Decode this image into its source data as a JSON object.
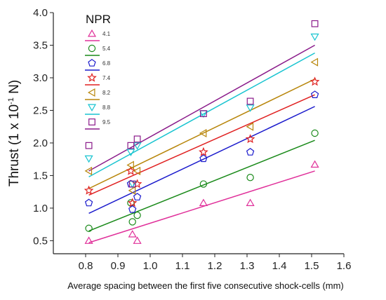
{
  "chart_data": {
    "type": "scatter",
    "title": "",
    "xlabel": "Average spacing between the first five consecutive shock-cells (mm)",
    "ylabel_parts": [
      "Thrust (1 x 10",
      "-1",
      " N)"
    ],
    "xlim": [
      0.7,
      1.6
    ],
    "ylim": [
      0.3,
      4.0
    ],
    "x_ticks": [
      "0.8",
      "0.9",
      "1.0",
      "1.1",
      "1.2",
      "1.3",
      "1.4",
      "1.5",
      "1.6"
    ],
    "y_ticks": [
      "0.5",
      "1.0",
      "1.5",
      "2.0",
      "2.5",
      "3.0",
      "3.5",
      "4.0"
    ],
    "grid": false,
    "legend_title": "NPR",
    "legend_position": "top-left",
    "series": [
      {
        "name": "4.1",
        "marker": "triangle-up",
        "color": "#e0309a",
        "points": [
          [
            0.81,
            0.5
          ],
          [
            0.945,
            0.6
          ],
          [
            0.96,
            0.5
          ],
          [
            1.165,
            1.08
          ],
          [
            1.31,
            1.08
          ],
          [
            1.51,
            1.67
          ]
        ],
        "fit": [
          [
            0.81,
            0.47
          ],
          [
            1.51,
            1.57
          ]
        ]
      },
      {
        "name": "5.4",
        "marker": "circle",
        "color": "#1a8a1a",
        "points": [
          [
            0.81,
            0.69
          ],
          [
            0.94,
            1.08
          ],
          [
            0.945,
            0.79
          ],
          [
            0.96,
            0.89
          ],
          [
            1.165,
            1.37
          ],
          [
            1.31,
            1.47
          ],
          [
            1.51,
            2.15
          ]
        ],
        "fit": [
          [
            0.81,
            0.65
          ],
          [
            1.51,
            2.04
          ]
        ]
      },
      {
        "name": "6.8",
        "marker": "pentagon",
        "color": "#1a1acc",
        "points": [
          [
            0.81,
            1.08
          ],
          [
            0.94,
            1.37
          ],
          [
            0.945,
            0.98
          ],
          [
            0.96,
            1.17
          ],
          [
            1.165,
            1.76
          ],
          [
            1.31,
            1.86
          ],
          [
            1.51,
            2.74
          ]
        ],
        "fit": [
          [
            0.81,
            0.92
          ],
          [
            1.51,
            2.56
          ]
        ]
      },
      {
        "name": "7.4",
        "marker": "star",
        "color": "#e02020",
        "points": [
          [
            0.81,
            1.27
          ],
          [
            0.94,
            1.57
          ],
          [
            0.945,
            1.08
          ],
          [
            0.96,
            1.37
          ],
          [
            1.165,
            1.86
          ],
          [
            1.31,
            2.06
          ],
          [
            1.51,
            2.94
          ]
        ],
        "fit": [
          [
            0.81,
            1.2
          ],
          [
            1.51,
            2.74
          ]
        ]
      },
      {
        "name": "8.2",
        "marker": "triangle-left",
        "color": "#b8860b",
        "points": [
          [
            0.81,
            1.57
          ],
          [
            0.94,
            1.66
          ],
          [
            0.945,
            1.27
          ],
          [
            0.96,
            1.57
          ],
          [
            1.165,
            2.15
          ],
          [
            1.31,
            2.25
          ],
          [
            1.51,
            3.24
          ]
        ],
        "fit": [
          [
            0.81,
            1.3
          ],
          [
            1.51,
            2.98
          ]
        ]
      },
      {
        "name": "8.8",
        "marker": "triangle-down",
        "color": "#18c4d0",
        "points": [
          [
            0.81,
            1.76
          ],
          [
            0.94,
            1.86
          ],
          [
            0.945,
            1.37
          ],
          [
            0.96,
            1.96
          ],
          [
            1.165,
            2.45
          ],
          [
            1.31,
            2.54
          ],
          [
            1.51,
            3.63
          ]
        ],
        "fit": [
          [
            0.81,
            1.48
          ],
          [
            1.51,
            3.38
          ]
        ]
      },
      {
        "name": "9.5",
        "marker": "square",
        "color": "#8a1a8a",
        "points": [
          [
            0.81,
            1.96
          ],
          [
            0.94,
            1.96
          ],
          [
            0.945,
            1.37
          ],
          [
            0.96,
            2.06
          ],
          [
            1.165,
            2.45
          ],
          [
            1.31,
            2.64
          ],
          [
            1.51,
            3.83
          ]
        ],
        "fit": [
          [
            0.81,
            1.57
          ],
          [
            1.51,
            3.5
          ]
        ]
      }
    ]
  }
}
